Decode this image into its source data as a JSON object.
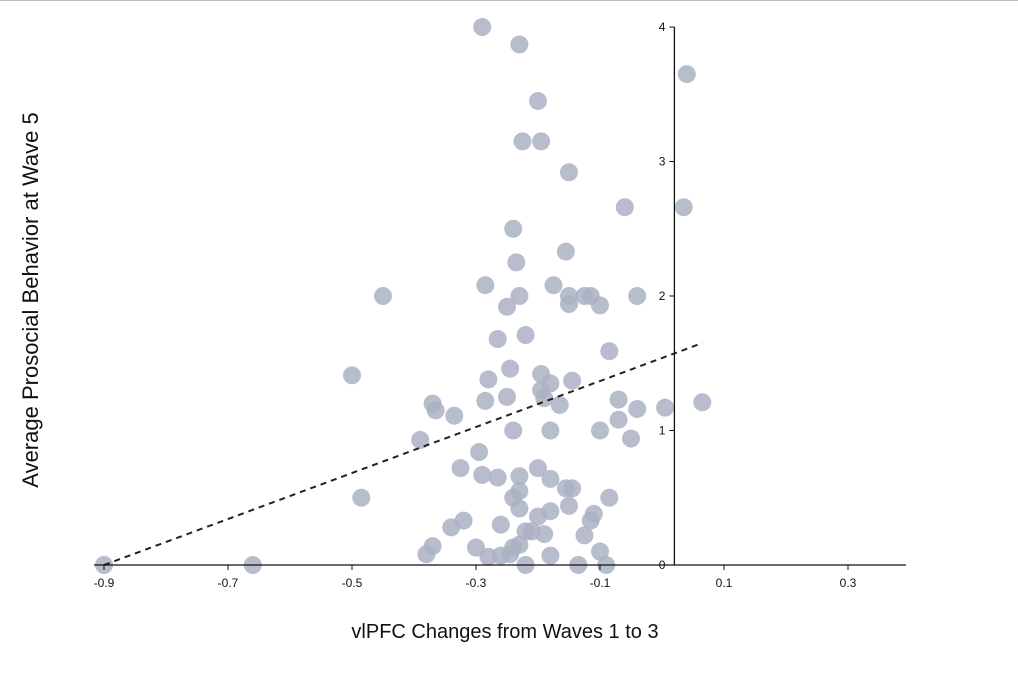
{
  "chart_data": {
    "type": "scatter",
    "title": "",
    "xlabel": "vlPFC Changes from Waves 1 to 3",
    "ylabel": "Average Prosocial Behavior at Wave 5",
    "xlim": [
      -0.9,
      0.4
    ],
    "ylim": [
      0,
      4
    ],
    "x_ticks": [
      -0.9,
      -0.7,
      -0.5,
      -0.3,
      -0.1,
      0.1,
      0.3
    ],
    "x_tick_labels": [
      "-0.9",
      "-0.7",
      "-0.5",
      "-0.3",
      "-0.1",
      "0.1",
      "0.3"
    ],
    "y_ticks": [
      0,
      1,
      2,
      3,
      4
    ],
    "y_tick_labels": [
      "0",
      "1",
      "2",
      "3",
      "4"
    ],
    "y_axis_at_x": 0.02,
    "grid": false,
    "legend": "none",
    "point_color": "#aab1c3",
    "line_color": "#222222",
    "points": [
      {
        "x": -0.9,
        "y": 0.0
      },
      {
        "x": -0.66,
        "y": 0.0
      },
      {
        "x": -0.29,
        "y": 4.0
      },
      {
        "x": -0.23,
        "y": 3.87
      },
      {
        "x": -0.2,
        "y": 3.45
      },
      {
        "x": -0.225,
        "y": 3.15
      },
      {
        "x": -0.195,
        "y": 3.15
      },
      {
        "x": -0.15,
        "y": 2.92
      },
      {
        "x": -0.06,
        "y": 2.66
      },
      {
        "x": 0.04,
        "y": 3.65
      },
      {
        "x": 0.035,
        "y": 2.66
      },
      {
        "x": -0.24,
        "y": 2.5
      },
      {
        "x": -0.155,
        "y": 2.33
      },
      {
        "x": -0.235,
        "y": 2.25
      },
      {
        "x": -0.285,
        "y": 2.08
      },
      {
        "x": -0.23,
        "y": 2.0
      },
      {
        "x": -0.175,
        "y": 2.08
      },
      {
        "x": -0.45,
        "y": 2.0
      },
      {
        "x": -0.15,
        "y": 2.0
      },
      {
        "x": -0.125,
        "y": 2.0
      },
      {
        "x": -0.115,
        "y": 2.0
      },
      {
        "x": -0.04,
        "y": 2.0
      },
      {
        "x": -0.25,
        "y": 1.92
      },
      {
        "x": -0.15,
        "y": 1.94
      },
      {
        "x": -0.1,
        "y": 1.93
      },
      {
        "x": -0.265,
        "y": 1.68
      },
      {
        "x": -0.22,
        "y": 1.71
      },
      {
        "x": -0.085,
        "y": 1.59
      },
      {
        "x": -0.5,
        "y": 1.41
      },
      {
        "x": -0.245,
        "y": 1.46
      },
      {
        "x": -0.195,
        "y": 1.42
      },
      {
        "x": -0.28,
        "y": 1.38
      },
      {
        "x": -0.195,
        "y": 1.3
      },
      {
        "x": -0.18,
        "y": 1.35
      },
      {
        "x": -0.145,
        "y": 1.37
      },
      {
        "x": -0.37,
        "y": 1.2
      },
      {
        "x": -0.365,
        "y": 1.15
      },
      {
        "x": -0.335,
        "y": 1.11
      },
      {
        "x": -0.285,
        "y": 1.22
      },
      {
        "x": -0.25,
        "y": 1.25
      },
      {
        "x": -0.19,
        "y": 1.24
      },
      {
        "x": -0.165,
        "y": 1.19
      },
      {
        "x": -0.07,
        "y": 1.23
      },
      {
        "x": -0.04,
        "y": 1.16
      },
      {
        "x": 0.005,
        "y": 1.17
      },
      {
        "x": 0.065,
        "y": 1.21
      },
      {
        "x": -0.39,
        "y": 0.93
      },
      {
        "x": -0.24,
        "y": 1.0
      },
      {
        "x": -0.18,
        "y": 1.0
      },
      {
        "x": -0.1,
        "y": 1.0
      },
      {
        "x": -0.07,
        "y": 1.08
      },
      {
        "x": -0.05,
        "y": 0.94
      },
      {
        "x": -0.295,
        "y": 0.84
      },
      {
        "x": -0.325,
        "y": 0.72
      },
      {
        "x": -0.29,
        "y": 0.67
      },
      {
        "x": -0.265,
        "y": 0.65
      },
      {
        "x": -0.23,
        "y": 0.66
      },
      {
        "x": -0.2,
        "y": 0.72
      },
      {
        "x": -0.18,
        "y": 0.64
      },
      {
        "x": -0.485,
        "y": 0.5
      },
      {
        "x": -0.24,
        "y": 0.5
      },
      {
        "x": -0.23,
        "y": 0.55
      },
      {
        "x": -0.155,
        "y": 0.57
      },
      {
        "x": -0.145,
        "y": 0.57
      },
      {
        "x": -0.085,
        "y": 0.5
      },
      {
        "x": -0.23,
        "y": 0.42
      },
      {
        "x": -0.18,
        "y": 0.4
      },
      {
        "x": -0.15,
        "y": 0.44
      },
      {
        "x": -0.11,
        "y": 0.38
      },
      {
        "x": -0.34,
        "y": 0.28
      },
      {
        "x": -0.32,
        "y": 0.33
      },
      {
        "x": -0.26,
        "y": 0.3
      },
      {
        "x": -0.2,
        "y": 0.36
      },
      {
        "x": -0.115,
        "y": 0.33
      },
      {
        "x": -0.22,
        "y": 0.25
      },
      {
        "x": -0.21,
        "y": 0.25
      },
      {
        "x": -0.19,
        "y": 0.23
      },
      {
        "x": -0.125,
        "y": 0.22
      },
      {
        "x": -0.37,
        "y": 0.14
      },
      {
        "x": -0.38,
        "y": 0.08
      },
      {
        "x": -0.3,
        "y": 0.13
      },
      {
        "x": -0.28,
        "y": 0.06
      },
      {
        "x": -0.26,
        "y": 0.07
      },
      {
        "x": -0.24,
        "y": 0.13
      },
      {
        "x": -0.23,
        "y": 0.15
      },
      {
        "x": -0.245,
        "y": 0.08
      },
      {
        "x": -0.18,
        "y": 0.07
      },
      {
        "x": -0.22,
        "y": 0.0
      },
      {
        "x": -0.135,
        "y": 0.0
      },
      {
        "x": -0.1,
        "y": 0.1
      },
      {
        "x": -0.09,
        "y": 0.0
      }
    ],
    "trendline": {
      "x": [
        -0.9,
        0.065
      ],
      "y": [
        0.0,
        1.65
      ],
      "style": "dashed"
    }
  }
}
